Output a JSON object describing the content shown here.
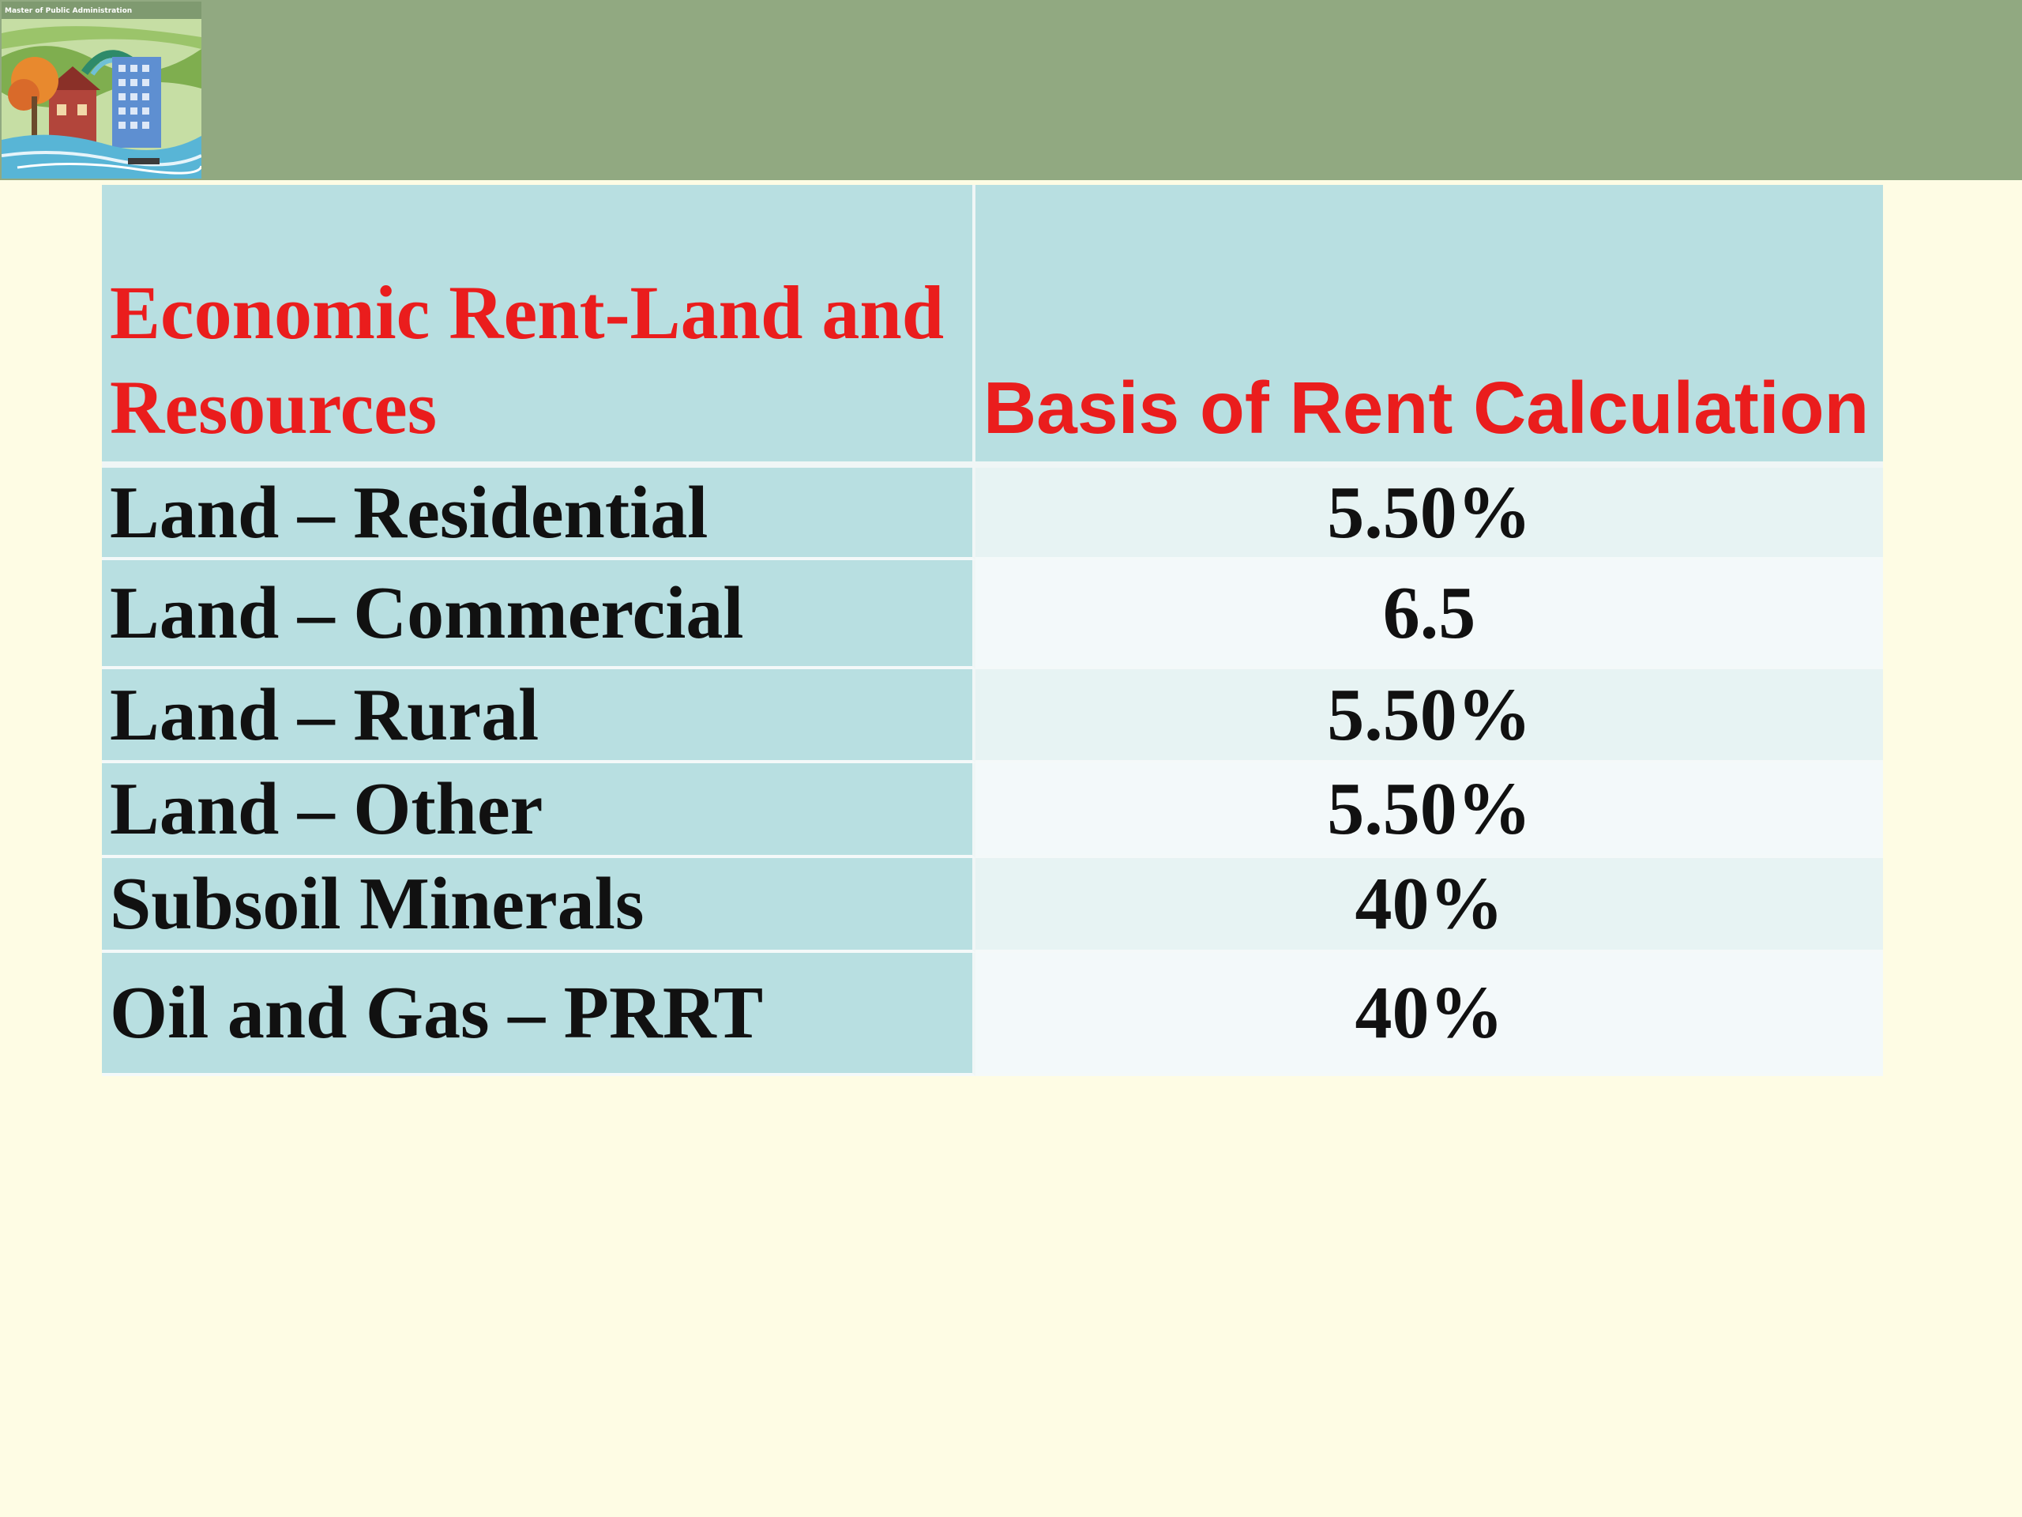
{
  "slide": {
    "logo": {
      "icon": "mpa-logo-icon",
      "caption": "Master of Public Administration"
    },
    "colors": {
      "top_band": "#91a981",
      "background": "#fefce4",
      "header_cell": "#b8dfe1",
      "header_text": "#ea1d1d",
      "body_text": "#111111"
    }
  },
  "table": {
    "headers": [
      "Economic Rent-Land and Resources",
      "Basis of Rent Calculation"
    ],
    "rows": [
      {
        "category": "Land – Residential",
        "basis": "5.50%"
      },
      {
        "category": "Land – Commercial",
        "basis": "6.5"
      },
      {
        "category": "Land – Rural",
        "basis": "5.50%"
      },
      {
        "category": "Land – Other",
        "basis": "5.50%"
      },
      {
        "category": "Subsoil Minerals",
        "basis": "40%"
      },
      {
        "category": "Oil and Gas – PRRT",
        "basis": "40%"
      }
    ]
  }
}
